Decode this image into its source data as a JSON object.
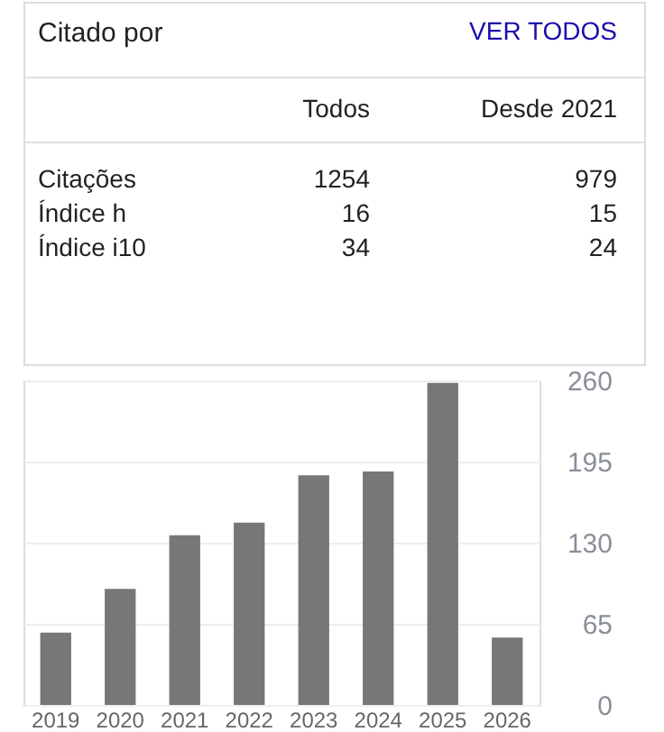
{
  "chart_data": [
    {
      "type": "other",
      "title": "Citado por",
      "annotations": [
        "VER TODOS"
      ],
      "categories": [
        "Citações",
        "Índice h",
        "Índice i10"
      ],
      "data_labels": true,
      "series": [
        {
          "name": "Todos",
          "values": [
            1254,
            16,
            34
          ]
        },
        {
          "name": "Desde 2021",
          "values": [
            979,
            15,
            24
          ]
        }
      ]
    },
    {
      "type": "bar",
      "categories": [
        "2019",
        "2020",
        "2021",
        "2022",
        "2023",
        "2024",
        "2025",
        "2026"
      ],
      "values": [
        58,
        93,
        136,
        146,
        184,
        187,
        258,
        54
      ],
      "color": "#777777",
      "ylim": [
        0,
        260
      ],
      "yticks": [
        0,
        65,
        130,
        195,
        260
      ],
      "grid": "y"
    }
  ]
}
